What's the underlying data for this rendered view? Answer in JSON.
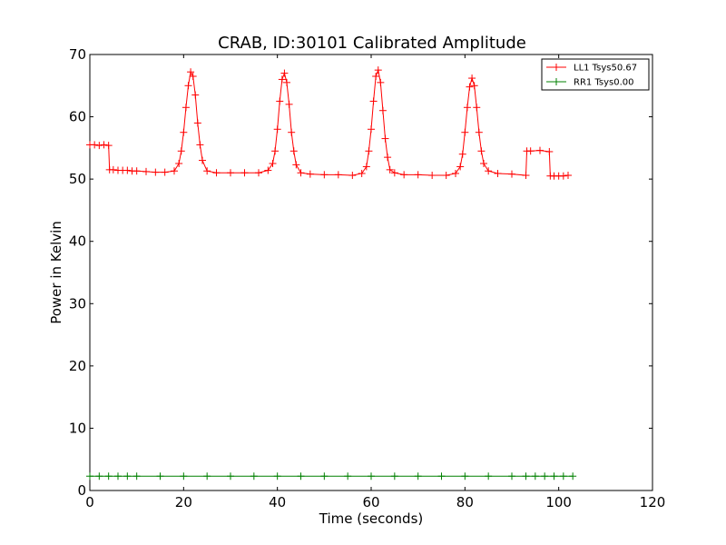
{
  "chart_data": {
    "type": "line",
    "title": "CRAB, ID:30101 Calibrated Amplitude",
    "xlabel": "Time (seconds)",
    "ylabel": "Power in Kelvin",
    "xlim": [
      0,
      120
    ],
    "ylim": [
      0,
      70
    ],
    "xticks": [
      "0",
      "20",
      "40",
      "60",
      "80",
      "100",
      "120"
    ],
    "yticks": [
      "0",
      "10",
      "20",
      "30",
      "40",
      "50",
      "60",
      "70"
    ],
    "grid": false,
    "legend_position": "top-right",
    "marker": "+",
    "series": [
      {
        "name": "LL1 Tsys50.67",
        "color": "#ff0000",
        "x": [
          0,
          1,
          2,
          3,
          4,
          4.2,
          5,
          6,
          7,
          8,
          9,
          10,
          12,
          14,
          16,
          18,
          19,
          19.5,
          20,
          20.5,
          21,
          21.5,
          22,
          22.5,
          23,
          23.5,
          24,
          25,
          27,
          30,
          33,
          36,
          38,
          39,
          39.5,
          40,
          40.5,
          41,
          41.5,
          42,
          42.5,
          43,
          43.5,
          44,
          45,
          47,
          50,
          53,
          56,
          58,
          59,
          59.5,
          60,
          60.5,
          61,
          61.5,
          62,
          62.5,
          63,
          63.5,
          64,
          65,
          67,
          70,
          73,
          76,
          78,
          79,
          79.5,
          80,
          80.5,
          81,
          81.5,
          82,
          82.5,
          83,
          83.5,
          84,
          85,
          87,
          90,
          93,
          93.2,
          94,
          96,
          98,
          98.2,
          99,
          100,
          101,
          102
        ],
        "values": [
          55.5,
          55.5,
          55.4,
          55.5,
          55.4,
          51.5,
          51.5,
          51.4,
          51.4,
          51.4,
          51.3,
          51.3,
          51.2,
          51.1,
          51.1,
          51.3,
          52.5,
          54.5,
          57.5,
          61.5,
          65,
          67.2,
          66.5,
          63.5,
          59,
          55.5,
          53,
          51.3,
          51,
          51,
          51,
          51,
          51.4,
          52.5,
          54.5,
          58,
          62.5,
          66,
          67,
          65.5,
          62,
          57.5,
          54.5,
          52.3,
          51,
          50.8,
          50.7,
          50.7,
          50.6,
          50.9,
          52,
          54.5,
          58,
          62.5,
          66.5,
          67.5,
          65.5,
          61,
          56.5,
          53.5,
          51.5,
          51,
          50.7,
          50.7,
          50.6,
          50.6,
          50.9,
          52,
          54,
          57.5,
          61.5,
          64.8,
          66.2,
          65,
          61.5,
          57.5,
          54.5,
          52.5,
          51.3,
          50.9,
          50.8,
          50.6,
          54.5,
          54.5,
          54.6,
          54.4,
          50.5,
          50.5,
          50.5,
          50.5,
          50.6
        ]
      },
      {
        "name": "RR1 Tsys0.00",
        "color": "#008000",
        "x": [
          0,
          2,
          4,
          6,
          8,
          10,
          15,
          20,
          25,
          30,
          35,
          40,
          45,
          50,
          55,
          60,
          65,
          70,
          75,
          80,
          85,
          90,
          93,
          95,
          97,
          99,
          101,
          103
        ],
        "values": [
          2.3,
          2.3,
          2.3,
          2.3,
          2.3,
          2.3,
          2.3,
          2.3,
          2.3,
          2.3,
          2.3,
          2.3,
          2.3,
          2.3,
          2.3,
          2.3,
          2.3,
          2.3,
          2.3,
          2.3,
          2.3,
          2.3,
          2.3,
          2.3,
          2.3,
          2.3,
          2.3,
          2.3
        ]
      }
    ]
  }
}
